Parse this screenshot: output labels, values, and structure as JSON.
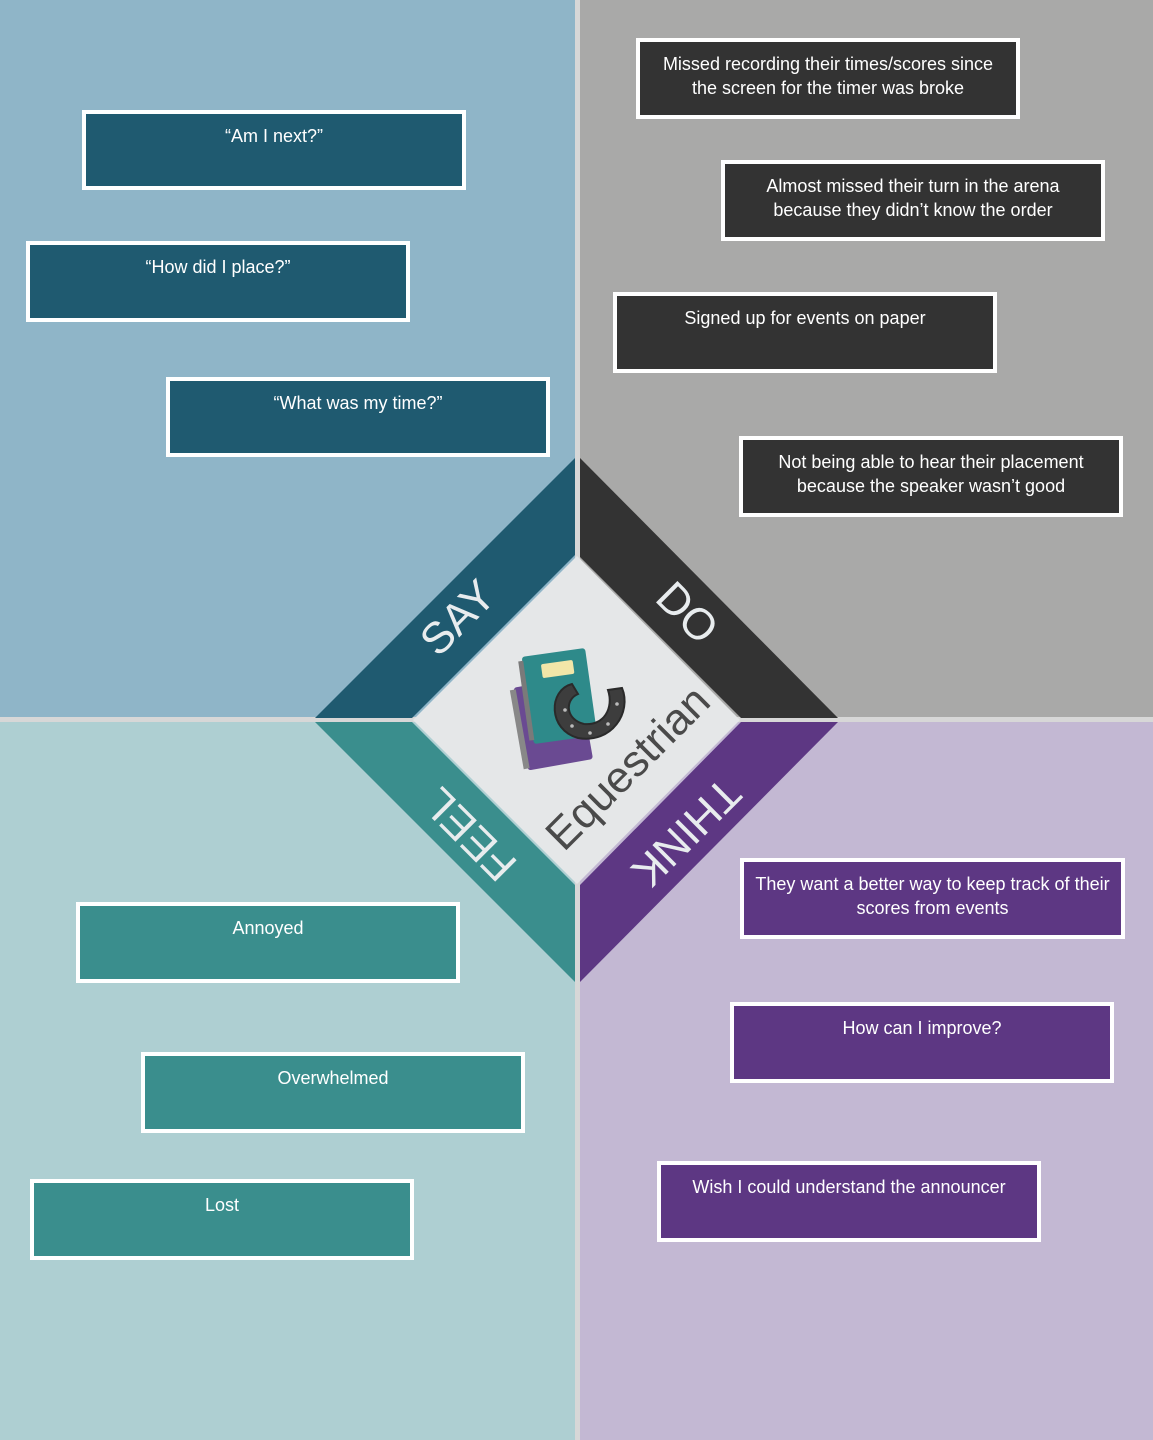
{
  "quadrants": {
    "say": {
      "label": "SAY",
      "color": "#1f5a70",
      "background": "#8fb5c8",
      "cards": [
        "“Am I next?”",
        "“How did I place?”",
        "“What was my time?”"
      ]
    },
    "do": {
      "label": "DO",
      "color": "#333333",
      "background": "#a9a9a8",
      "cards": [
        "Missed recording their times/scores since the screen for the timer was broke",
        "Almost missed their turn in the arena because they didn’t know the order",
        "Signed up for events on paper",
        "Not being able to hear their placement because the speaker wasn’t good"
      ]
    },
    "feel": {
      "label": "FEEL",
      "color": "#3a8e8d",
      "background": "#aecfd2",
      "cards": [
        "Annoyed",
        "Overwhelmed",
        "Lost"
      ]
    },
    "think": {
      "label": "THINK",
      "color": "#5d3783",
      "background": "#c3b8d3",
      "cards": [
        "They want a better way to keep track of their scores from events",
        "How can I improve?",
        "Wish I could understand the announcer"
      ]
    }
  },
  "center": {
    "title": "Equestrian",
    "icon": "notebooks-horseshoe-icon"
  }
}
